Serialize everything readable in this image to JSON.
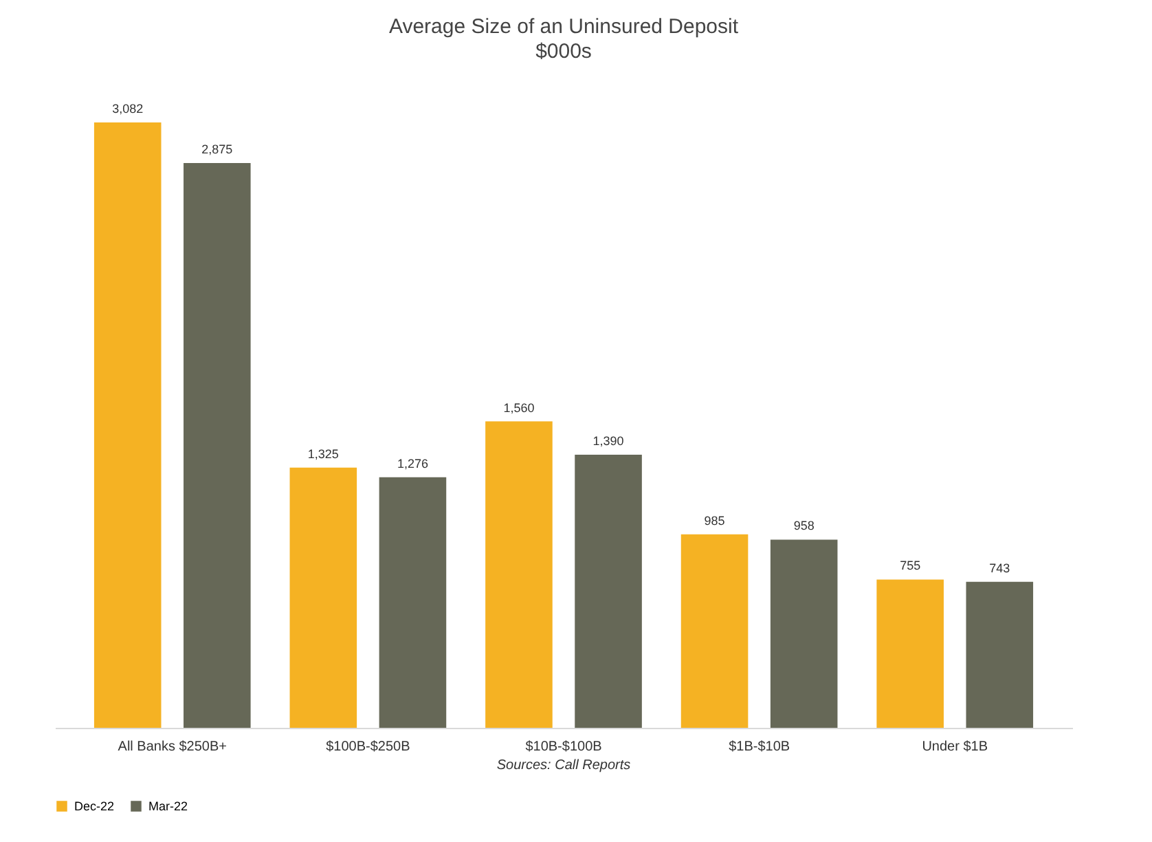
{
  "chart_data": {
    "type": "bar",
    "title": "Average Size of an Uninsured Deposit",
    "subtitle": "$000s",
    "categories": [
      "All Banks $250B+",
      "$100B-$250B",
      "$10B-$100B",
      "$1B-$10B",
      "Under $1B"
    ],
    "series": [
      {
        "name": "Dec-22",
        "color": "#f5b223",
        "values": [
          3082,
          1325,
          1560,
          985,
          755
        ],
        "value_labels": [
          "3,082",
          "1,325",
          "1,560",
          "985",
          "755"
        ]
      },
      {
        "name": "Mar-22",
        "color": "#666857",
        "values": [
          2875,
          1276,
          1390,
          958,
          743
        ],
        "value_labels": [
          "2,875",
          "1,276",
          "1,390",
          "958",
          "743"
        ]
      }
    ],
    "grid": false,
    "legend": "bottom",
    "annotations": [
      "Sources: Call Reports"
    ]
  }
}
